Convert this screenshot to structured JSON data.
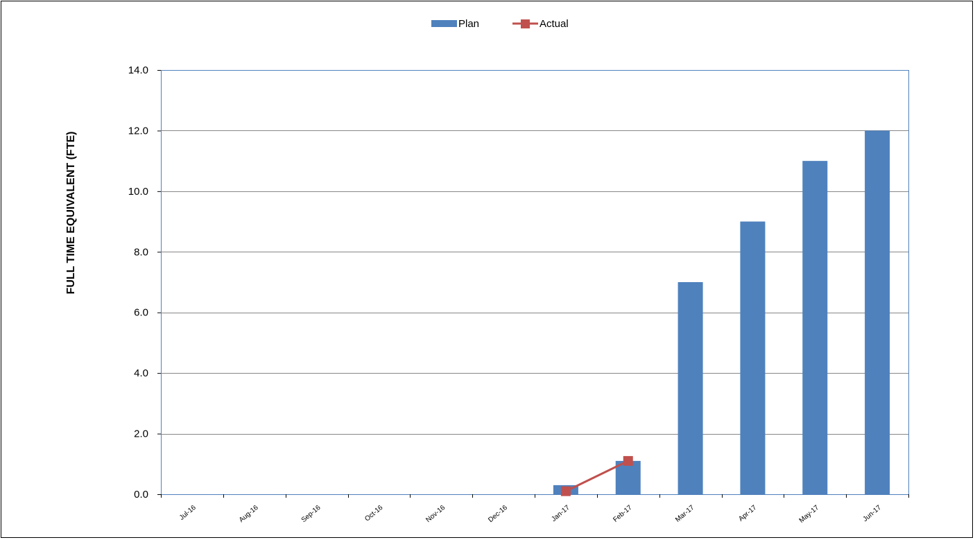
{
  "chart_data": {
    "type": "bar",
    "categories": [
      "Jul-16",
      "Aug-16",
      "Sep-16",
      "Oct-16",
      "Nov-16",
      "Dec-16",
      "Jan-17",
      "Feb-17",
      "Mar-17",
      "Apr-17",
      "May-17",
      "Jun-17"
    ],
    "series": [
      {
        "name": "Plan",
        "type": "bar",
        "color": "#4F81BD",
        "values": [
          0,
          0,
          0,
          0,
          0,
          0,
          0.3,
          1.1,
          7.0,
          9.0,
          11.0,
          12.0
        ]
      },
      {
        "name": "Actual",
        "type": "line",
        "color": "#C0504D",
        "values": [
          null,
          null,
          null,
          null,
          null,
          null,
          0.1,
          1.1,
          null,
          null,
          null,
          null
        ]
      }
    ],
    "title": "",
    "xlabel": "",
    "ylabel": "FULL TIME EQUIVALENT (FTE)",
    "ylim": [
      0,
      14
    ],
    "yticks": [
      "0.0",
      "2.0",
      "4.0",
      "6.0",
      "8.0",
      "10.0",
      "12.0",
      "14.0"
    ],
    "grid": true,
    "legend": "top-center",
    "plot_border_color": "#4F81BD",
    "grid_color": "#868686"
  }
}
